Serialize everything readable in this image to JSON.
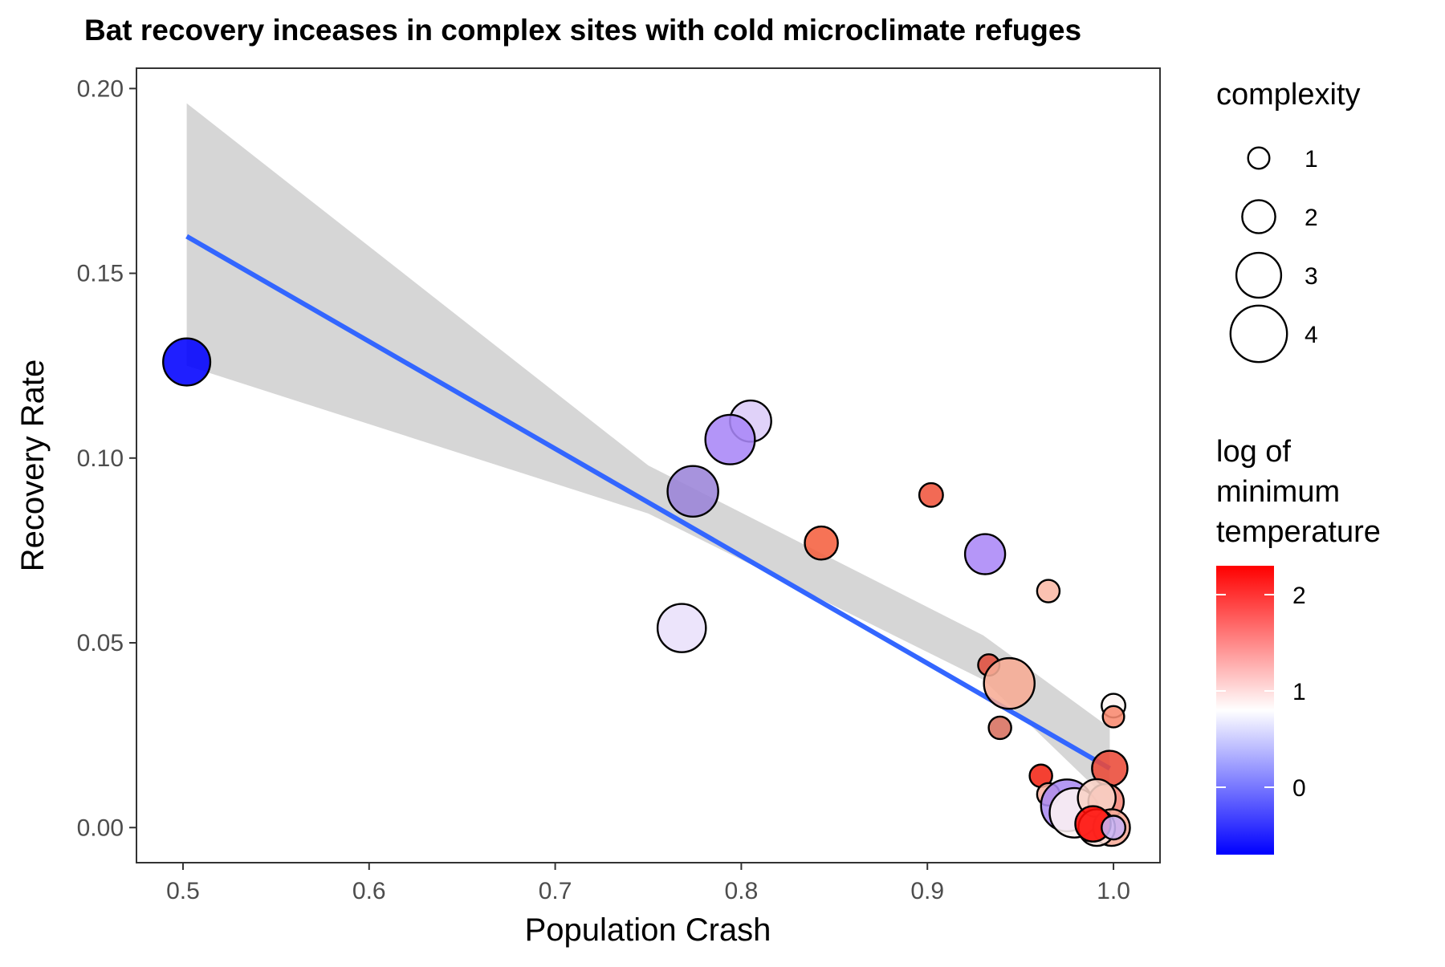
{
  "chart_data": {
    "type": "scatter",
    "title": "Bat recovery inceases in complex sites with cold microclimate refuges",
    "xlabel": "Population Crash",
    "ylabel": "Recovery Rate",
    "xlim": [
      0.475,
      1.025
    ],
    "ylim": [
      -0.0095,
      0.2055
    ],
    "x_ticks": [
      0.5,
      0.6,
      0.7,
      0.8,
      0.9,
      1.0
    ],
    "x_tick_labels": [
      "0.5",
      "0.6",
      "0.7",
      "0.8",
      "0.9",
      "1.0"
    ],
    "y_ticks": [
      0.0,
      0.05,
      0.1,
      0.15,
      0.2
    ],
    "y_tick_labels": [
      "0.00",
      "0.05",
      "0.10",
      "0.15",
      "0.20"
    ],
    "grid": false,
    "legend_position": "right",
    "size_legend": {
      "title": "complexity",
      "values": [
        1,
        2,
        3,
        4
      ],
      "labels": [
        "1",
        "2",
        "3",
        "4"
      ]
    },
    "color_legend": {
      "title_lines": [
        "log of",
        "minimum",
        "temperature"
      ],
      "range": [
        -0.7,
        2.3
      ],
      "ticks": [
        0,
        1,
        2
      ],
      "tick_labels": [
        "0",
        "1",
        "2"
      ],
      "low_color": "#0000ff",
      "mid_color": "#ffffff",
      "high_color": "#ff0000",
      "midpoint": 0.8
    },
    "fit": {
      "method": "linear",
      "color": "#3366ff",
      "ribbon_color": "#d6d6d6",
      "x_range": [
        0.502,
        0.998
      ],
      "y_start": 0.16,
      "y_end": 0.016,
      "ribbon_lower": [
        {
          "x": 0.502,
          "y": 0.125
        },
        {
          "x": 0.75,
          "y": 0.085
        },
        {
          "x": 0.93,
          "y": 0.04
        },
        {
          "x": 0.998,
          "y": 0.007
        }
      ],
      "ribbon_upper": [
        {
          "x": 0.998,
          "y": 0.027
        },
        {
          "x": 0.93,
          "y": 0.052
        },
        {
          "x": 0.75,
          "y": 0.098
        },
        {
          "x": 0.502,
          "y": 0.196
        }
      ]
    },
    "points": [
      {
        "x": 0.502,
        "y": 0.126,
        "complexity": 3.2,
        "color": "#0000ff"
      },
      {
        "x": 0.805,
        "y": 0.11,
        "complexity": 2.7,
        "color": "#dcccf8"
      },
      {
        "x": 0.794,
        "y": 0.105,
        "complexity": 3.4,
        "color": "#a986f7"
      },
      {
        "x": 0.774,
        "y": 0.091,
        "complexity": 3.5,
        "color": "#9b84d8"
      },
      {
        "x": 0.843,
        "y": 0.077,
        "complexity": 2.0,
        "color": "#f5603f"
      },
      {
        "x": 0.902,
        "y": 0.09,
        "complexity": 1.2,
        "color": "#f0553d"
      },
      {
        "x": 0.931,
        "y": 0.074,
        "complexity": 2.6,
        "color": "#ab87f7"
      },
      {
        "x": 0.965,
        "y": 0.064,
        "complexity": 1.1,
        "color": "#fbb9a6"
      },
      {
        "x": 0.768,
        "y": 0.054,
        "complexity": 3.3,
        "color": "#e9e0fb"
      },
      {
        "x": 0.933,
        "y": 0.044,
        "complexity": 1.0,
        "color": "#e04e3e"
      },
      {
        "x": 0.944,
        "y": 0.039,
        "complexity": 3.5,
        "color": "#f7ac95"
      },
      {
        "x": 0.939,
        "y": 0.027,
        "complexity": 1.1,
        "color": "#d7705f"
      },
      {
        "x": 1.0,
        "y": 0.033,
        "complexity": 1.2,
        "color": "#fdf6f4"
      },
      {
        "x": 1.0,
        "y": 0.03,
        "complexity": 1.0,
        "color": "#f88a70"
      },
      {
        "x": 0.998,
        "y": 0.016,
        "complexity": 2.2,
        "color": "#ea4a38"
      },
      {
        "x": 0.961,
        "y": 0.014,
        "complexity": 1.1,
        "color": "#f32516"
      },
      {
        "x": 0.965,
        "y": 0.009,
        "complexity": 1.1,
        "color": "#fbb2a0"
      },
      {
        "x": 0.975,
        "y": 0.006,
        "complexity": 3.6,
        "color": "#aa8bf2"
      },
      {
        "x": 0.979,
        "y": 0.004,
        "complexity": 3.4,
        "color": "#fdf3f2"
      },
      {
        "x": 0.996,
        "y": 0.007,
        "complexity": 2.2,
        "color": "#f6887a"
      },
      {
        "x": 0.991,
        "y": 0.008,
        "complexity": 2.4,
        "color": "#f8d2c6"
      },
      {
        "x": 0.999,
        "y": 0.0,
        "complexity": 2.3,
        "color": "#f8ab98"
      },
      {
        "x": 0.991,
        "y": 0.0,
        "complexity": 2.3,
        "color": "#fde2dd"
      },
      {
        "x": 0.989,
        "y": 0.001,
        "complexity": 2.2,
        "color": "#ff0a05"
      },
      {
        "x": 1.0,
        "y": 0.0,
        "complexity": 1.2,
        "color": "#c8b3f5"
      }
    ]
  }
}
